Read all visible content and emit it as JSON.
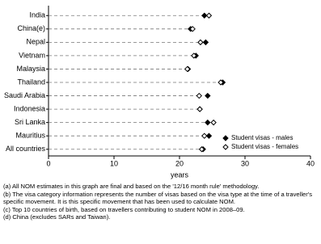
{
  "chart_data": {
    "type": "dot",
    "categories": [
      "India",
      "China(e)",
      "Nepal",
      "Vietnam",
      "Malaysia",
      "Thailand",
      "Saudi Arabia",
      "Indonesia",
      "Sri Lanka",
      "Mauritius",
      "All countries"
    ],
    "series": [
      {
        "name": "Student visas - males",
        "color": "#000000",
        "values": [
          23.8,
          21.7,
          24.0,
          22.5,
          21.3,
          26.6,
          24.3,
          23.1,
          24.3,
          24.5,
          23.6
        ]
      },
      {
        "name": "Student visas - females",
        "color": "#ffffff",
        "values": [
          24.5,
          22.0,
          23.2,
          22.2,
          21.2,
          26.3,
          23.0,
          23.1,
          25.2,
          23.8,
          23.4
        ]
      }
    ],
    "xlabel": "years",
    "xlim": [
      0,
      40
    ],
    "xticks": [
      0,
      10,
      20,
      30,
      40
    ],
    "legend": "lower right"
  },
  "notes": [
    "(a) All NOM estimates in this graph are final and based on the '12/16 month rule' methodology.",
    "(b) The visa category information represents the number of visas based on the visa type at the time of a traveller's specific movement. It is this specific movement that has been used to calculate NOM.",
    "(c) Top 10 countries of birth, based on travellers contributing to student NOM in 2008–09.",
    "(d) China (excludes SARs and Taiwan)."
  ]
}
